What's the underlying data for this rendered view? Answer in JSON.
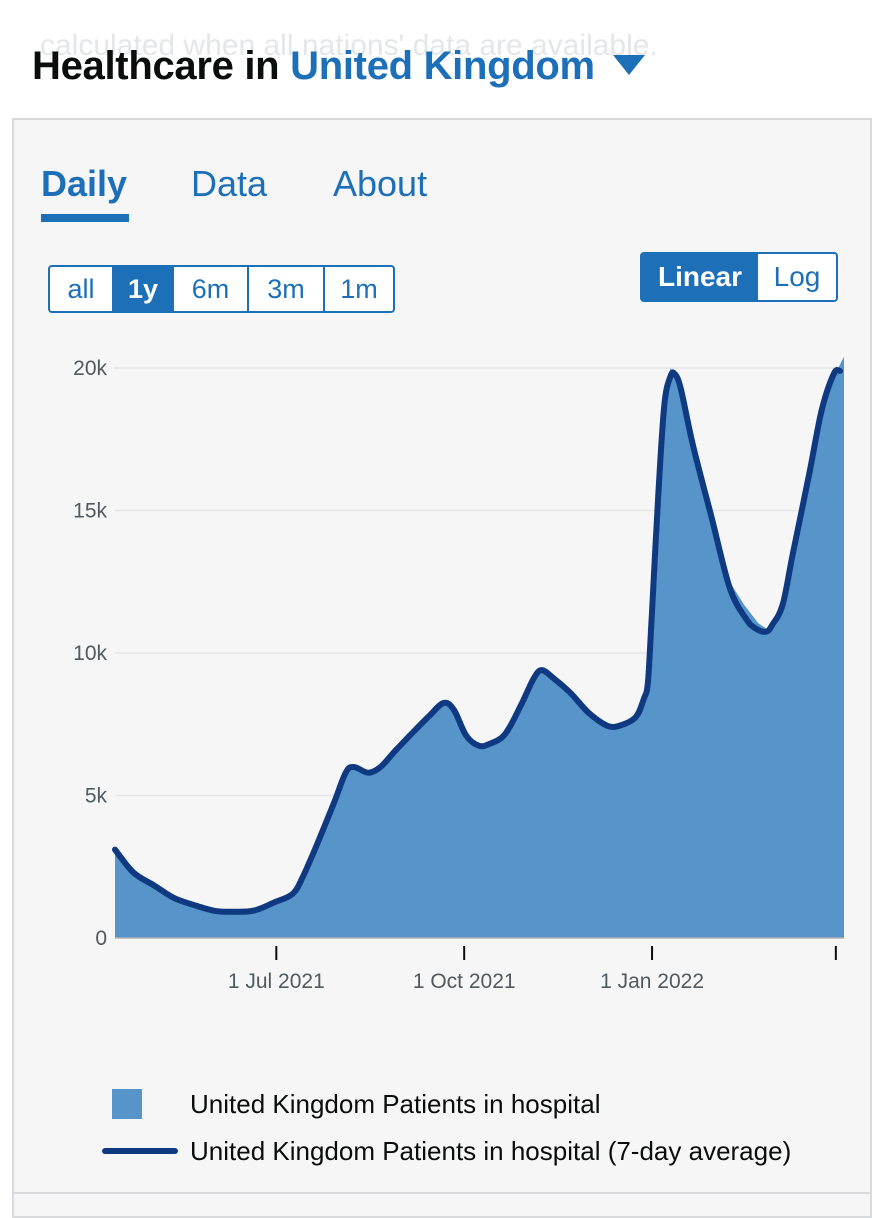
{
  "page": {
    "ghost_text": "calculated when all nations' data are available.",
    "heading_prefix": "Healthcare in",
    "area_name": "United Kingdom"
  },
  "tabs": [
    {
      "label": "Daily",
      "active": true
    },
    {
      "label": "Data",
      "active": false
    },
    {
      "label": "About",
      "active": false
    }
  ],
  "range_buttons": [
    {
      "label": "all",
      "active": false
    },
    {
      "label": "1y",
      "active": true
    },
    {
      "label": "6m",
      "active": false
    },
    {
      "label": "3m",
      "active": false
    },
    {
      "label": "1m",
      "active": false
    }
  ],
  "scale_buttons": [
    {
      "label": "Linear",
      "active": true
    },
    {
      "label": "Log",
      "active": false
    }
  ],
  "colors": {
    "accent": "#1d70b8",
    "area_fill": "#5694ca",
    "line": "#0f3a82",
    "grid": "#e5e6e8"
  },
  "chart_data": {
    "type": "area",
    "x_start": "2021-04-13",
    "x_end": "2022-04-05",
    "ylim": [
      0,
      20000
    ],
    "yticks": [
      0,
      5000,
      10000,
      15000,
      20000
    ],
    "ytick_labels": [
      "0",
      "5k",
      "10k",
      "15k",
      "20k"
    ],
    "xticks": [
      {
        "date": "2021-07-01",
        "label": "1 Jul 2021"
      },
      {
        "date": "2021-10-01",
        "label": "1 Oct 2021"
      },
      {
        "date": "2022-01-01",
        "label": "1 Jan 2022"
      },
      {
        "date": "2022-04-01",
        "label": ""
      }
    ],
    "grid": true,
    "series": [
      {
        "name": "United Kingdom Patients in hospital",
        "type": "area",
        "points": [
          [
            "2021-04-13",
            3200
          ],
          [
            "2021-04-22",
            2400
          ],
          [
            "2021-05-02",
            1900
          ],
          [
            "2021-05-12",
            1450
          ],
          [
            "2021-05-22",
            1200
          ],
          [
            "2021-06-01",
            950
          ],
          [
            "2021-06-10",
            920
          ],
          [
            "2021-06-20",
            980
          ],
          [
            "2021-06-30",
            1250
          ],
          [
            "2021-07-09",
            1550
          ],
          [
            "2021-07-14",
            2200
          ],
          [
            "2021-07-21",
            3400
          ],
          [
            "2021-07-29",
            4800
          ],
          [
            "2021-08-04",
            5900
          ],
          [
            "2021-08-08",
            6100
          ],
          [
            "2021-08-15",
            5800
          ],
          [
            "2021-08-21",
            6050
          ],
          [
            "2021-08-28",
            6600
          ],
          [
            "2021-09-05",
            7200
          ],
          [
            "2021-09-14",
            7850
          ],
          [
            "2021-09-21",
            8300
          ],
          [
            "2021-09-28",
            7800
          ],
          [
            "2021-10-04",
            7000
          ],
          [
            "2021-10-10",
            6750
          ],
          [
            "2021-10-16",
            6900
          ],
          [
            "2021-10-22",
            7200
          ],
          [
            "2021-10-30",
            8200
          ],
          [
            "2021-11-04",
            9000
          ],
          [
            "2021-11-08",
            9500
          ],
          [
            "2021-11-14",
            9200
          ],
          [
            "2021-11-22",
            8700
          ],
          [
            "2021-12-01",
            8000
          ],
          [
            "2021-12-10",
            7500
          ],
          [
            "2021-12-16",
            7450
          ],
          [
            "2021-12-23",
            7750
          ],
          [
            "2021-12-28",
            8500
          ],
          [
            "2022-01-01",
            11500
          ],
          [
            "2022-01-04",
            15500
          ],
          [
            "2022-01-07",
            18800
          ],
          [
            "2022-01-10",
            20000
          ],
          [
            "2022-01-13",
            19600
          ],
          [
            "2022-01-18",
            18000
          ],
          [
            "2022-01-25",
            16000
          ],
          [
            "2022-02-01",
            14400
          ],
          [
            "2022-02-08",
            12500
          ],
          [
            "2022-02-15",
            11700
          ],
          [
            "2022-02-22",
            11050
          ],
          [
            "2022-02-26",
            10850
          ],
          [
            "2022-03-02",
            11000
          ],
          [
            "2022-03-07",
            11800
          ],
          [
            "2022-03-13",
            14000
          ],
          [
            "2022-03-19",
            16300
          ],
          [
            "2022-03-25",
            18500
          ],
          [
            "2022-03-29",
            19400
          ],
          [
            "2022-04-05",
            20400
          ]
        ]
      },
      {
        "name": "United Kingdom Patients in hospital (7-day average)",
        "type": "line",
        "points": [
          [
            "2021-04-13",
            3100
          ],
          [
            "2021-04-22",
            2300
          ],
          [
            "2021-05-02",
            1850
          ],
          [
            "2021-05-12",
            1400
          ],
          [
            "2021-05-22",
            1150
          ],
          [
            "2021-06-01",
            950
          ],
          [
            "2021-06-10",
            920
          ],
          [
            "2021-06-20",
            960
          ],
          [
            "2021-06-30",
            1250
          ],
          [
            "2021-07-09",
            1550
          ],
          [
            "2021-07-14",
            2150
          ],
          [
            "2021-07-21",
            3300
          ],
          [
            "2021-07-29",
            4700
          ],
          [
            "2021-08-04",
            5800
          ],
          [
            "2021-08-08",
            6000
          ],
          [
            "2021-08-15",
            5800
          ],
          [
            "2021-08-21",
            6000
          ],
          [
            "2021-08-28",
            6550
          ],
          [
            "2021-09-05",
            7150
          ],
          [
            "2021-09-14",
            7800
          ],
          [
            "2021-09-21",
            8250
          ],
          [
            "2021-09-26",
            8000
          ],
          [
            "2021-10-02",
            7100
          ],
          [
            "2021-10-08",
            6750
          ],
          [
            "2021-10-13",
            6800
          ],
          [
            "2021-10-21",
            7150
          ],
          [
            "2021-10-29",
            8200
          ],
          [
            "2021-11-04",
            9100
          ],
          [
            "2021-11-08",
            9400
          ],
          [
            "2021-11-14",
            9100
          ],
          [
            "2021-11-22",
            8600
          ],
          [
            "2021-12-01",
            7900
          ],
          [
            "2021-12-10",
            7450
          ],
          [
            "2021-12-16",
            7450
          ],
          [
            "2021-12-24",
            7750
          ],
          [
            "2021-12-28",
            8400
          ],
          [
            "2021-12-30",
            9000
          ],
          [
            "2022-01-01",
            11500
          ],
          [
            "2022-01-04",
            15500
          ],
          [
            "2022-01-07",
            18700
          ],
          [
            "2022-01-10",
            19700
          ],
          [
            "2022-01-12",
            19800
          ],
          [
            "2022-01-15",
            19300
          ],
          [
            "2022-01-21",
            17300
          ],
          [
            "2022-01-30",
            14800
          ],
          [
            "2022-02-08",
            12300
          ],
          [
            "2022-02-16",
            11200
          ],
          [
            "2022-02-21",
            10850
          ],
          [
            "2022-02-26",
            10750
          ],
          [
            "2022-03-01",
            11000
          ],
          [
            "2022-03-06",
            11700
          ],
          [
            "2022-03-11",
            13500
          ],
          [
            "2022-03-19",
            16300
          ],
          [
            "2022-03-25",
            18500
          ],
          [
            "2022-03-31",
            19800
          ],
          [
            "2022-04-03",
            19900
          ]
        ]
      }
    ],
    "legend": [
      {
        "label": "United Kingdom Patients in hospital",
        "marker": "square"
      },
      {
        "label": "United Kingdom Patients in hospital (7-day average)",
        "marker": "line"
      }
    ],
    "legend_position": "bottom"
  }
}
